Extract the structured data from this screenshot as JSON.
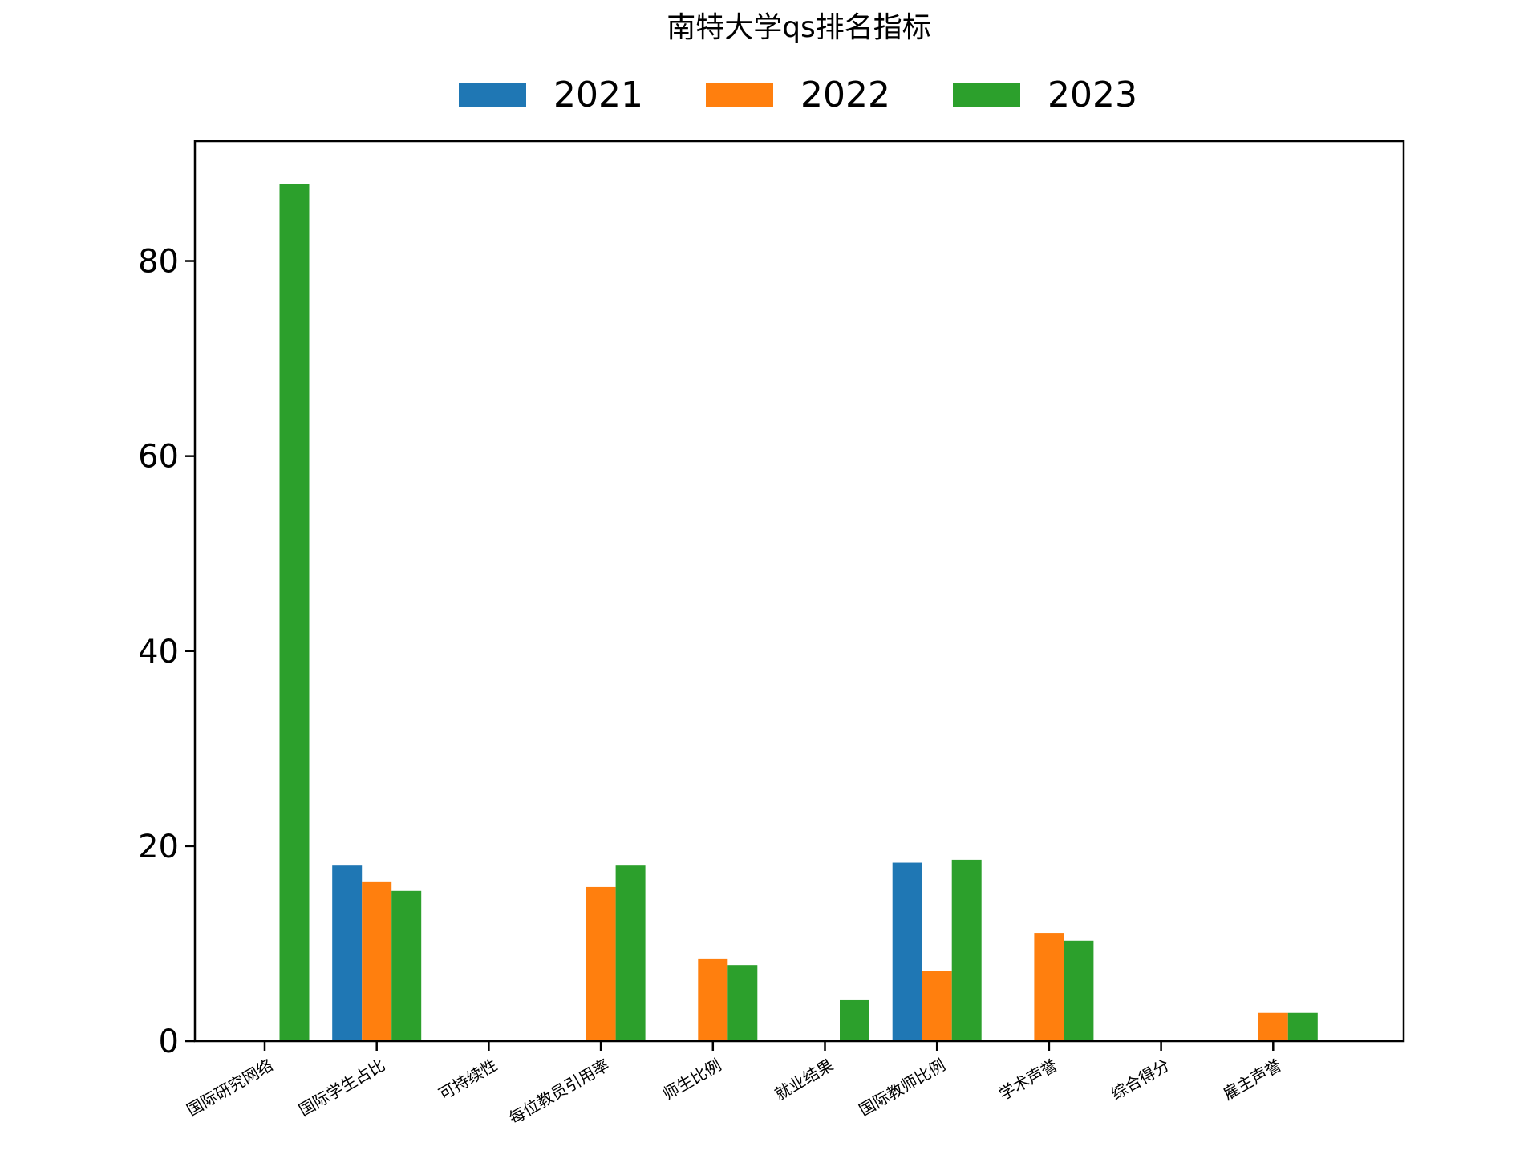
{
  "chart_data": {
    "type": "bar",
    "title": "南特大学qs排名指标",
    "xlabel": "",
    "ylabel": "",
    "categories": [
      "国际研究网络",
      "国际学生占比",
      "可持续性",
      "每位教员引用率",
      "师生比例",
      "就业结果",
      "国际教师比例",
      "学术声誉",
      "综合得分",
      "雇主声誉"
    ],
    "series": [
      {
        "name": "2021",
        "color": "#1f77b4",
        "values": [
          0,
          18.0,
          0,
          0,
          0,
          0,
          18.3,
          0,
          0,
          0
        ]
      },
      {
        "name": "2022",
        "color": "#ff7f0e",
        "values": [
          0,
          16.3,
          0,
          15.8,
          8.4,
          0,
          7.2,
          11.1,
          0,
          2.9
        ]
      },
      {
        "name": "2023",
        "color": "#2ca02c",
        "values": [
          87.9,
          15.4,
          0,
          18.0,
          7.8,
          4.2,
          18.6,
          10.3,
          0,
          2.9
        ]
      }
    ],
    "yticks": [
      0,
      20,
      40,
      60,
      80
    ],
    "ylim": [
      0,
      92.3
    ],
    "grid": false,
    "legend": "top-center"
  }
}
